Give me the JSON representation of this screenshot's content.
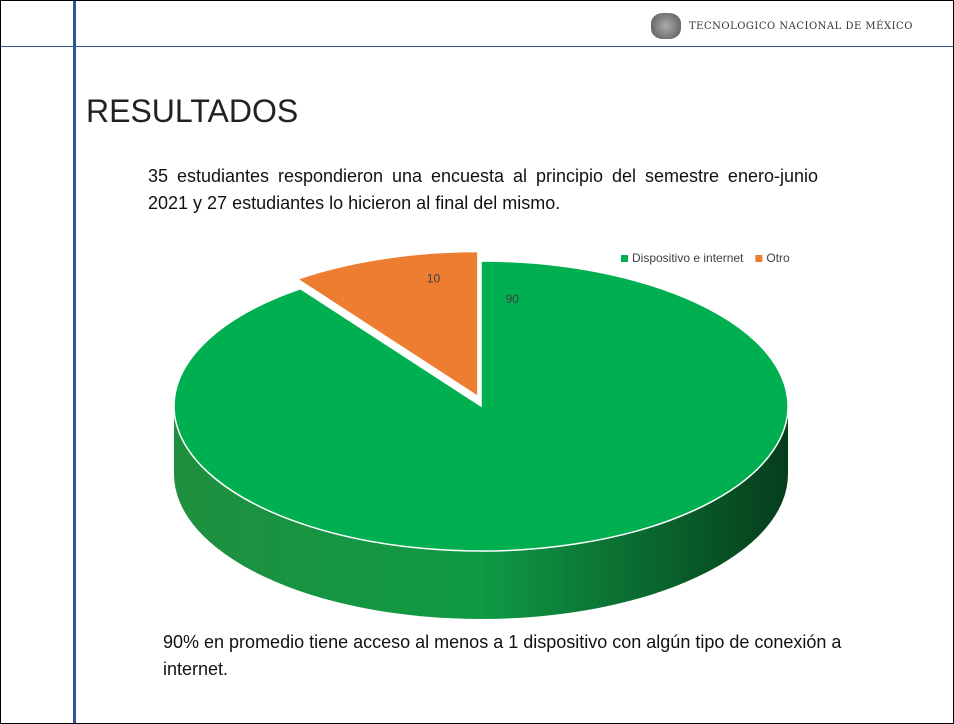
{
  "header": {
    "logo_text": "TECNOLOGICO NACIONAL DE MÉXICO"
  },
  "title": "RESULTADOS",
  "intro": "35 estudiantes respondieron una encuesta al principio del semestre enero-junio 2021 y 27 estudiantes lo hicieron al final del mismo.",
  "chart_data": {
    "type": "pie",
    "categories": [
      "Dispositivo e internet",
      "Otro"
    ],
    "values": [
      90,
      10
    ],
    "colors": [
      "#00b050",
      "#ed7d31"
    ],
    "legend": "top-right",
    "three_d": true
  },
  "conclusion": "90% en promedio tiene acceso al menos a 1 dispositivo con algún tipo de conexión a internet."
}
